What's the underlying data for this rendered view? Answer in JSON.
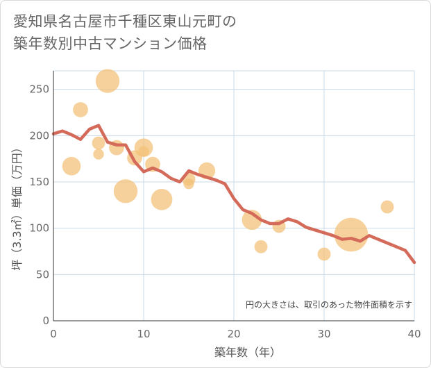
{
  "title_lines": [
    "愛知県名古屋市千種区東山元町の",
    "築年数別中古マンション価格"
  ],
  "chart_data": {
    "type": "scatter+line",
    "xlabel": "築年数（年）",
    "ylabel": "坪（3.3㎡）単価（万円）",
    "xlim": [
      0,
      40
    ],
    "ylim": [
      0,
      270
    ],
    "x_ticks": [
      0,
      10,
      20,
      30,
      40
    ],
    "y_ticks": [
      0,
      50,
      100,
      150,
      200,
      250
    ],
    "grid": true,
    "note": "円の大きさは、取引のあった物件面積を示す",
    "colors": {
      "bubble": "#f3c27a",
      "line": "#d46a5a",
      "grid": "#c9d8e8"
    },
    "bubbles": [
      {
        "x": 2,
        "y": 167,
        "size": 3
      },
      {
        "x": 3,
        "y": 228,
        "size": 2
      },
      {
        "x": 5,
        "y": 192,
        "size": 1.5
      },
      {
        "x": 5,
        "y": 180,
        "size": 1
      },
      {
        "x": 6,
        "y": 259,
        "size": 5
      },
      {
        "x": 7,
        "y": 187,
        "size": 2
      },
      {
        "x": 8,
        "y": 140,
        "size": 5
      },
      {
        "x": 9,
        "y": 176,
        "size": 2
      },
      {
        "x": 10,
        "y": 187,
        "size": 3
      },
      {
        "x": 10,
        "y": 183,
        "size": 1
      },
      {
        "x": 11,
        "y": 169,
        "size": 2
      },
      {
        "x": 12,
        "y": 131,
        "size": 4
      },
      {
        "x": 15,
        "y": 148,
        "size": 1
      },
      {
        "x": 15,
        "y": 153,
        "size": 1.5
      },
      {
        "x": 17,
        "y": 162,
        "size": 2.5
      },
      {
        "x": 22,
        "y": 109,
        "size": 3.5
      },
      {
        "x": 23,
        "y": 80,
        "size": 1.5
      },
      {
        "x": 25,
        "y": 102,
        "size": 1.5
      },
      {
        "x": 30,
        "y": 72,
        "size": 1.5
      },
      {
        "x": 33,
        "y": 93,
        "size": 10
      },
      {
        "x": 37,
        "y": 123,
        "size": 1.5
      }
    ],
    "trend": {
      "x": [
        0,
        1,
        2,
        3,
        4,
        5,
        6,
        7,
        8,
        9,
        10,
        11,
        12,
        13,
        14,
        15,
        16,
        17,
        18,
        19,
        20,
        21,
        22,
        23,
        24,
        25,
        26,
        27,
        28,
        29,
        30,
        31,
        32,
        33,
        34,
        35,
        36,
        37,
        38,
        39,
        40
      ],
      "y": [
        202,
        205,
        201,
        196,
        207,
        211,
        193,
        190,
        190,
        172,
        161,
        165,
        161,
        154,
        150,
        162,
        158,
        155,
        152,
        148,
        132,
        120,
        116,
        109,
        105,
        105,
        110,
        107,
        101,
        98,
        95,
        92,
        88,
        89,
        86,
        92,
        88,
        84,
        80,
        76,
        63
      ]
    }
  }
}
